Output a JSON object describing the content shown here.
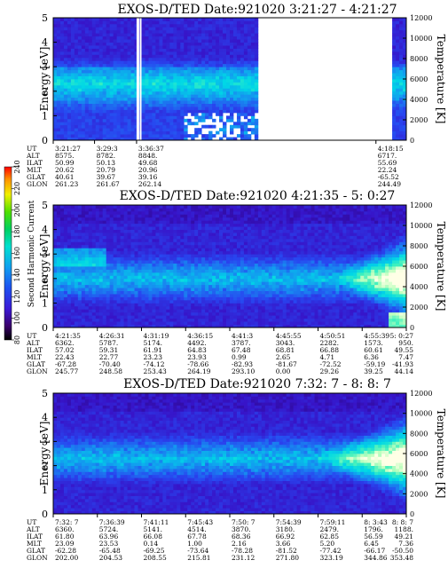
{
  "chart_data": {
    "type": "heatmap",
    "colorbar": {
      "label": "Second Harmonic Current",
      "ticks": [
        "80",
        "100",
        "120",
        "140",
        "160",
        "180",
        "200",
        "220",
        "240"
      ],
      "range": [
        80,
        240
      ]
    },
    "panels": [
      {
        "title": "EXOS-D/TED   Date:921020   3:21:27 - 4:21:27",
        "ylabel": "Energy [eV]",
        "y2label": "Temperature [K]",
        "ylim": [
          0,
          5
        ],
        "y2lim": [
          0,
          12000
        ],
        "yticks": [
          "0",
          "1",
          "2",
          "3",
          "4",
          "5"
        ],
        "y2ticks": [
          "0",
          "2000",
          "4000",
          "6000",
          "8000",
          "10000",
          "12000"
        ],
        "row_labels": [
          "UT",
          "ALT",
          "ILAT",
          "MLT",
          "GLAT",
          "GLON"
        ],
        "columns": [
          {
            "values": [
              "3:21:27",
              "8575.",
              "50.99",
              "20.62",
              "40.61",
              "261.23"
            ]
          },
          {
            "values": [
              "3:29:3",
              "8782.",
              "50.13",
              "20.79",
              "39.67",
              "261.67"
            ]
          },
          {
            "values": [
              "3:36:37",
              "8848.",
              "49.68",
              "20.96",
              "39.16",
              "262.14"
            ]
          },
          {
            "values": [
              "4:18:15",
              "6717.",
              "55.69",
              "22.24",
              "-65.52",
              "244.49"
            ]
          }
        ],
        "data_coverage": [
          [
            0.0,
            0.58
          ],
          [
            0.96,
            1.0
          ]
        ],
        "features": {
          "band_energy_ev": 2.3,
          "noisy_region": [
            0.37,
            0.58
          ]
        }
      },
      {
        "title": "EXOS-D/TED   Date:921020   4:21:35 - 5: 0:27",
        "ylabel": "Energy [eV]",
        "y2label": "Temperature [K]",
        "ylim": [
          0,
          5
        ],
        "y2lim": [
          0,
          12000
        ],
        "yticks": [
          "0",
          "1",
          "2",
          "3",
          "4",
          "5"
        ],
        "y2ticks": [
          "0",
          "2000",
          "4000",
          "6000",
          "8000",
          "10000",
          "12000"
        ],
        "row_labels": [
          "UT",
          "ALT",
          "ILAT",
          "MLT",
          "GLAT",
          "GLON"
        ],
        "columns": [
          {
            "values": [
              "4:21:35",
              "6362.",
              "57.02",
              "22.43",
              "-67.28",
              "245.77"
            ]
          },
          {
            "values": [
              "4:26:31",
              "5787.",
              "59.31",
              "22.77",
              "-70.40",
              "248.58"
            ]
          },
          {
            "values": [
              "4:31:19",
              "5174.",
              "61.91",
              "23.23",
              "-74.12",
              "253.43"
            ]
          },
          {
            "values": [
              "4:36:15",
              "4492.",
              "64.83",
              "23.93",
              "-78.66",
              "264.19"
            ]
          },
          {
            "values": [
              "4:41:3",
              "3787.",
              "67.48",
              "0.99",
              "-82.93",
              "293.10"
            ]
          },
          {
            "values": [
              "4:45:55",
              "3043.",
              "68.81",
              "2.65",
              "-81.67",
              "0.00"
            ]
          },
          {
            "values": [
              "4:50:51",
              "2282.",
              "66.88",
              "4.71",
              "-72.52",
              "29.26"
            ]
          },
          {
            "values": [
              "4:55:39",
              "1573.",
              "60.61",
              "6.36",
              "-59.19",
              "39.25"
            ]
          },
          {
            "values": [
              "5: 0:27",
              "950.",
              "49.55",
              "7.47",
              "-41.93",
              "44.14"
            ]
          }
        ],
        "data_coverage": [
          [
            0.0,
            1.0
          ]
        ],
        "features": {
          "band_energy_ev": 2.0,
          "hot_region": [
            0.78,
            1.0
          ]
        }
      },
      {
        "title": "EXOS-D/TED   Date:921020   7:32: 7 - 8: 8: 7",
        "ylabel": "Energy [eV]",
        "y2label": "Temperature [K]",
        "ylim": [
          0,
          5
        ],
        "y2lim": [
          0,
          12000
        ],
        "yticks": [
          "0",
          "1",
          "2",
          "3",
          "4",
          "5"
        ],
        "y2ticks": [
          "0",
          "2000",
          "4000",
          "6000",
          "8000",
          "10000",
          "12000"
        ],
        "row_labels": [
          "UT",
          "ALT",
          "ILAT",
          "MLT",
          "GLAT",
          "GLON"
        ],
        "columns": [
          {
            "values": [
              "7:32: 7",
              "6360.",
              "61.80",
              "23.09",
              "-62.28",
              "202.00"
            ]
          },
          {
            "values": [
              "7:36:39",
              "5724.",
              "63.96",
              "23.53",
              "-65.48",
              "204.53"
            ]
          },
          {
            "values": [
              "7:41:11",
              "5141.",
              "66.08",
              "0.14",
              "-69.25",
              "208.55"
            ]
          },
          {
            "values": [
              "7:45:43",
              "4514.",
              "67.78",
              "1.00",
              "-73.64",
              "215.81"
            ]
          },
          {
            "values": [
              "7:50: 7",
              "3870.",
              "68.36",
              "2.16",
              "-78.28",
              "231.12"
            ]
          },
          {
            "values": [
              "7:54:39",
              "3180.",
              "66.92",
              "3.66",
              "-81.52",
              "271.80"
            ]
          },
          {
            "values": [
              "7:59:11",
              "2479.",
              "62.85",
              "5.20",
              "-77.42",
              "323.19"
            ]
          },
          {
            "values": [
              "8: 3:43",
              "1796.",
              "56.59",
              "6.45",
              "-66.17",
              "344.86"
            ]
          },
          {
            "values": [
              "8: 8: 7",
              "1188.",
              "49.21",
              "7.36",
              "-50.50",
              "353.48"
            ]
          }
        ],
        "data_coverage": [
          [
            0.0,
            1.0
          ]
        ],
        "features": {
          "band_energy_ev": 2.3,
          "hot_region": [
            0.72,
            1.0
          ]
        }
      }
    ]
  }
}
